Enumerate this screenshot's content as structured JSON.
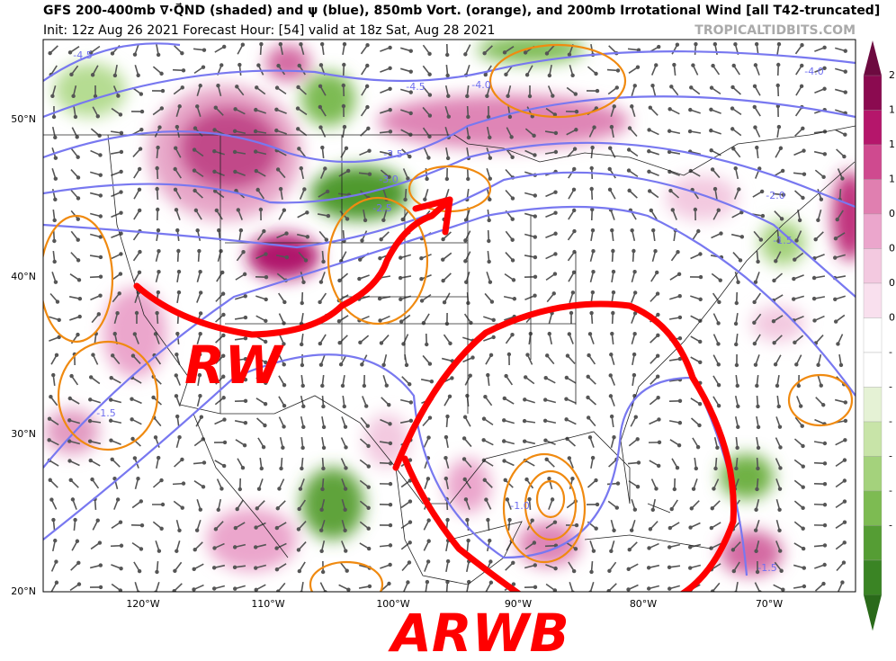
{
  "header": {
    "title": "GFS 200-400mb ∇·Q⃗ND (shaded) and ψ (blue), 850mb Vort. (orange), and 200mb Irrotational Wind [all T42-truncated]",
    "subtitle": "Init: 12z Aug 26 2021   Forecast Hour: [54]   valid at 18z Sat, Aug 28 2021",
    "credit": "TROPICALTIDBITS.COM"
  },
  "map": {
    "lat_labels": [
      "50°N",
      "40°N",
      "30°N",
      "20°N"
    ],
    "lon_labels": [
      "120°W",
      "110°W",
      "100°W",
      "90°W",
      "80°W",
      "70°W"
    ],
    "contour_labels": [
      "-4.5",
      "-4.5",
      "-4.0",
      "-4.0",
      "-3.5",
      "-3.0",
      "-2.5",
      "-2.0",
      "-1.5",
      "-1.5",
      "-1.0",
      "-1.5"
    ],
    "annotations": [
      "RW",
      "ARWB"
    ]
  },
  "colorbar": {
    "labels": [
      "2",
      "1",
      "1",
      "1",
      "0",
      "0",
      "0",
      "0",
      "-",
      "-",
      "-",
      "-",
      "-",
      "-"
    ]
  }
}
